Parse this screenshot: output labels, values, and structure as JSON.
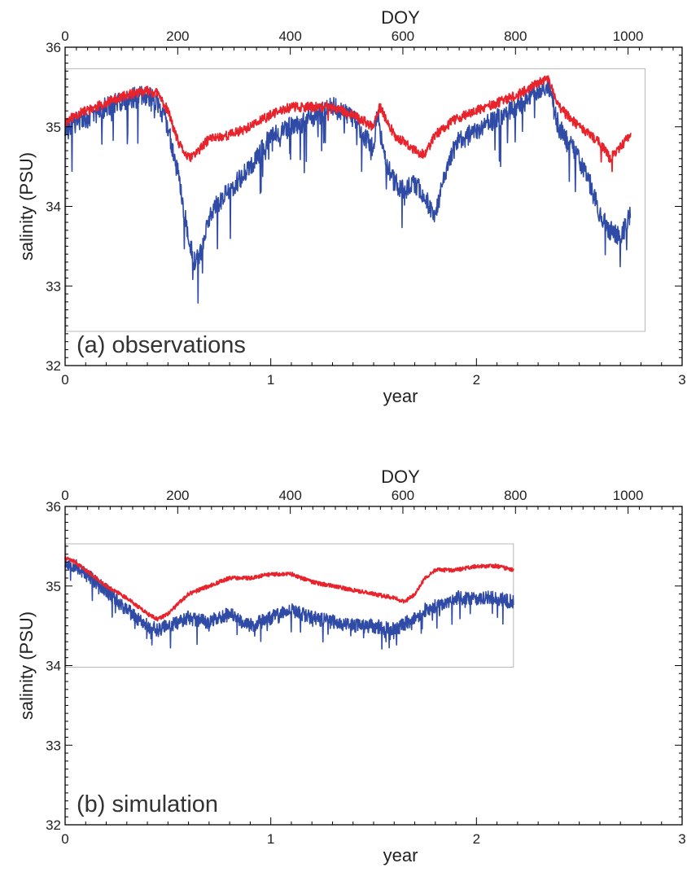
{
  "colors": {
    "surface": "#e8232c",
    "deep": "#2f4ba5",
    "frame": "#000000",
    "inset": "#b8b8b8"
  },
  "chart_data": [
    {
      "type": "line",
      "panel_label": "(a) observations",
      "xlabel": "year",
      "ylabel": "salinity (PSU)",
      "top_xlabel": "DOY",
      "xlim": [
        0,
        3
      ],
      "ylim": [
        32,
        36
      ],
      "top_xlim": [
        0,
        1096
      ],
      "x_ticks": [
        "0",
        "1",
        "2",
        "3"
      ],
      "y_ticks": [
        "32",
        "33",
        "34",
        "35",
        "36"
      ],
      "top_ticks": [
        "0",
        "200",
        "400",
        "600",
        "800",
        "1000"
      ],
      "inset_xlim": [
        0,
        2.82
      ],
      "inset_ylim": [
        32.43,
        35.73
      ],
      "series": [
        {
          "color": "#e8232c",
          "noise": 0.06,
          "spike_prob": 0.01,
          "spike_depth": 0.25,
          "seed": 11,
          "x": [
            0.0,
            0.05,
            0.1,
            0.2,
            0.3,
            0.4,
            0.45,
            0.5,
            0.55,
            0.6,
            0.65,
            0.7,
            0.8,
            0.9,
            1.0,
            1.1,
            1.2,
            1.3,
            1.4,
            1.5,
            1.53,
            1.6,
            1.7,
            1.75,
            1.8,
            1.9,
            2.0,
            2.1,
            2.2,
            2.3,
            2.35,
            2.4,
            2.5,
            2.6,
            2.65,
            2.7,
            2.75
          ],
          "y": [
            35.05,
            35.15,
            35.2,
            35.3,
            35.4,
            35.45,
            35.42,
            35.2,
            34.8,
            34.6,
            34.7,
            34.85,
            34.9,
            35.0,
            35.15,
            35.25,
            35.25,
            35.25,
            35.15,
            35.0,
            35.25,
            34.9,
            34.7,
            34.65,
            34.9,
            35.1,
            35.2,
            35.3,
            35.4,
            35.55,
            35.6,
            35.25,
            35.0,
            34.8,
            34.6,
            34.75,
            34.9
          ]
        },
        {
          "color": "#2f4ba5",
          "noise": 0.13,
          "spike_prob": 0.06,
          "spike_depth": 0.55,
          "seed": 29,
          "x": [
            0.0,
            0.05,
            0.1,
            0.2,
            0.3,
            0.4,
            0.45,
            0.5,
            0.55,
            0.6,
            0.63,
            0.66,
            0.7,
            0.8,
            0.9,
            1.0,
            1.1,
            1.2,
            1.3,
            1.4,
            1.5,
            1.52,
            1.55,
            1.6,
            1.65,
            1.7,
            1.75,
            1.8,
            1.85,
            1.9,
            2.0,
            2.1,
            2.2,
            2.3,
            2.35,
            2.4,
            2.5,
            2.55,
            2.6,
            2.65,
            2.7,
            2.75
          ],
          "y": [
            34.95,
            35.05,
            35.1,
            35.25,
            35.35,
            35.4,
            35.3,
            35.0,
            34.4,
            33.6,
            33.3,
            33.4,
            33.9,
            34.2,
            34.5,
            34.9,
            35.0,
            35.1,
            35.25,
            35.1,
            34.7,
            35.2,
            34.6,
            34.3,
            34.2,
            34.3,
            34.1,
            33.9,
            34.4,
            34.8,
            34.95,
            35.1,
            35.25,
            35.45,
            35.55,
            35.0,
            34.6,
            34.3,
            33.9,
            33.7,
            33.6,
            33.9
          ]
        }
      ]
    },
    {
      "type": "line",
      "panel_label": "(b) simulation",
      "xlabel": "year",
      "ylabel": "salinity (PSU)",
      "top_xlabel": "DOY",
      "xlim": [
        0,
        3
      ],
      "ylim": [
        32,
        36
      ],
      "top_xlim": [
        0,
        1096
      ],
      "x_ticks": [
        "0",
        "1",
        "2",
        "3"
      ],
      "y_ticks": [
        "32",
        "33",
        "34",
        "35",
        "36"
      ],
      "top_ticks": [
        "0",
        "200",
        "400",
        "600",
        "800",
        "1000"
      ],
      "inset_xlim": [
        0,
        2.18
      ],
      "inset_ylim": [
        33.98,
        35.53
      ],
      "series": [
        {
          "color": "#e8232c",
          "noise": 0.025,
          "spike_prob": 0.0,
          "spike_depth": 0.0,
          "seed": 41,
          "x": [
            0.0,
            0.05,
            0.1,
            0.2,
            0.3,
            0.4,
            0.45,
            0.5,
            0.6,
            0.7,
            0.8,
            0.9,
            1.0,
            1.1,
            1.2,
            1.3,
            1.4,
            1.5,
            1.6,
            1.65,
            1.7,
            1.75,
            1.8,
            1.9,
            2.0,
            2.1,
            2.18
          ],
          "y": [
            35.35,
            35.3,
            35.2,
            35.0,
            34.85,
            34.65,
            34.58,
            34.65,
            34.9,
            35.0,
            35.1,
            35.1,
            35.15,
            35.15,
            35.05,
            35.0,
            34.95,
            34.9,
            34.85,
            34.8,
            34.9,
            35.1,
            35.2,
            35.2,
            35.25,
            35.25,
            35.2
          ]
        },
        {
          "color": "#2f4ba5",
          "noise": 0.09,
          "spike_prob": 0.05,
          "spike_depth": 0.28,
          "seed": 53,
          "x": [
            0.0,
            0.05,
            0.1,
            0.2,
            0.3,
            0.4,
            0.45,
            0.5,
            0.6,
            0.7,
            0.8,
            0.9,
            1.0,
            1.1,
            1.2,
            1.3,
            1.4,
            1.5,
            1.6,
            1.7,
            1.75,
            1.8,
            1.9,
            2.0,
            2.1,
            2.18
          ],
          "y": [
            35.3,
            35.25,
            35.15,
            34.95,
            34.7,
            34.5,
            34.45,
            34.5,
            34.6,
            34.55,
            34.65,
            34.5,
            34.6,
            34.7,
            34.6,
            34.55,
            34.5,
            34.5,
            34.45,
            34.6,
            34.7,
            34.75,
            34.85,
            34.85,
            34.85,
            34.8
          ]
        }
      ]
    }
  ]
}
